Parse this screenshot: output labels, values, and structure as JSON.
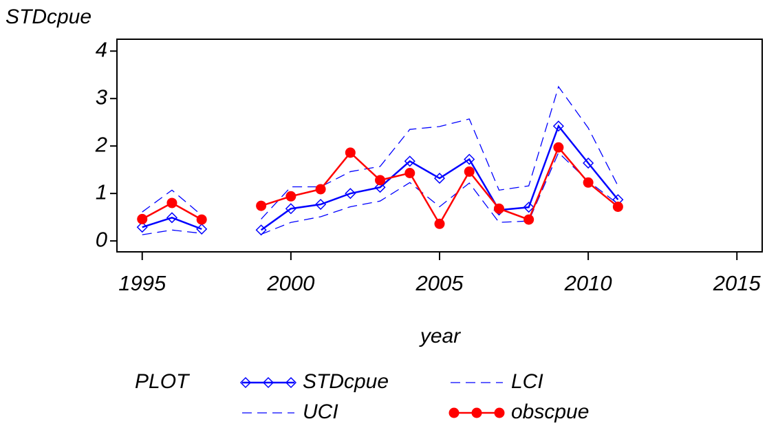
{
  "chart_data": {
    "type": "line",
    "y_label": "STDcpue",
    "x_label": "year",
    "legend_title": "PLOT",
    "x": [
      1995,
      1996,
      1997,
      1998,
      1999,
      2000,
      2001,
      2002,
      2003,
      2004,
      2005,
      2006,
      2007,
      2008,
      2009,
      2010,
      2011
    ],
    "xlim": [
      1994.15,
      2015.85
    ],
    "xticks": [
      1995,
      2000,
      2005,
      2010,
      2015
    ],
    "ylim": [
      -0.23,
      4.25
    ],
    "yticks": [
      0,
      1,
      2,
      3,
      4
    ],
    "series": [
      {
        "name": "STDcpue",
        "color": "#0000ff",
        "marker": "diamond",
        "dash": false,
        "values": [
          0.29,
          0.49,
          0.25,
          null,
          0.23,
          0.68,
          0.77,
          1.0,
          1.13,
          1.68,
          1.32,
          1.72,
          0.65,
          0.71,
          2.42,
          1.64,
          0.87
        ]
      },
      {
        "name": "UCI",
        "color": "#0000ff",
        "marker": "none",
        "dash": true,
        "values": [
          0.61,
          1.07,
          0.54,
          null,
          0.46,
          1.14,
          1.14,
          1.46,
          1.57,
          2.35,
          2.41,
          2.57,
          1.07,
          1.16,
          3.25,
          2.38,
          1.16
        ]
      },
      {
        "name": "LCI",
        "color": "#0000ff",
        "marker": "none",
        "dash": true,
        "values": [
          0.13,
          0.23,
          0.16,
          null,
          0.14,
          0.39,
          0.51,
          0.72,
          0.84,
          1.23,
          0.72,
          1.22,
          0.39,
          0.42,
          1.86,
          1.26,
          0.78
        ]
      },
      {
        "name": "obscpue",
        "color": "#ff0000",
        "marker": "circle",
        "dash": false,
        "values": [
          0.46,
          0.8,
          0.45,
          null,
          0.74,
          0.94,
          1.09,
          1.86,
          1.28,
          1.43,
          0.36,
          1.46,
          0.68,
          0.45,
          1.97,
          1.23,
          0.72
        ]
      }
    ]
  }
}
